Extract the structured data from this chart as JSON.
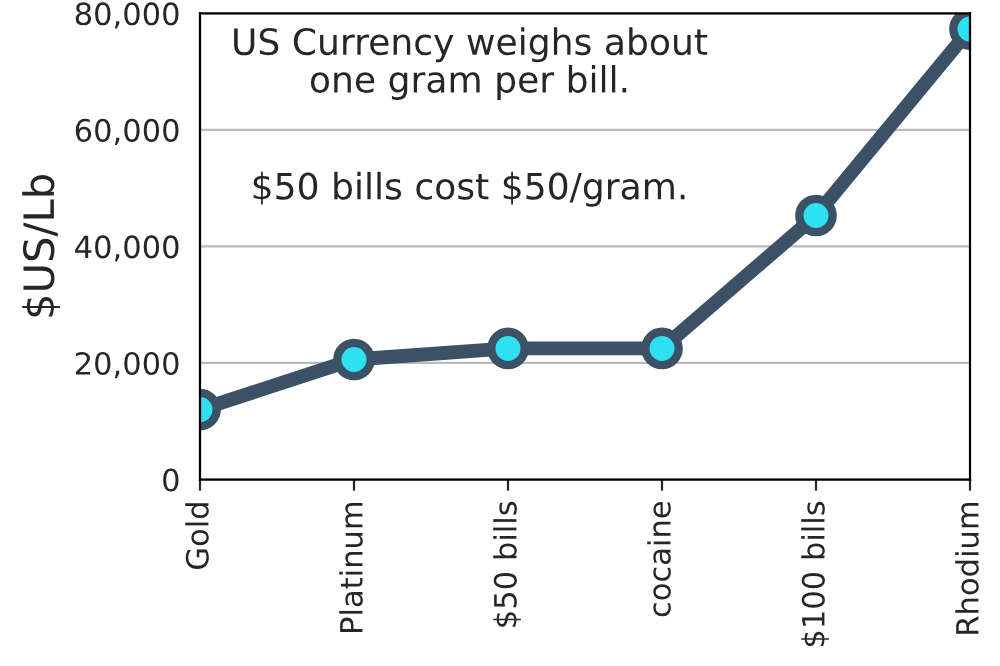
{
  "chart_data": {
    "type": "line",
    "ylabel": "$US/Lb",
    "categories": [
      "Gold",
      "Platinum",
      "$50 bills",
      "cocaine",
      "$100 bills",
      "Rhodium"
    ],
    "series": [
      {
        "color": "#3b5266",
        "values": [
          12000,
          20600,
          22500,
          22500,
          45300,
          77300
        ]
      }
    ],
    "ylim": [
      0,
      80000
    ],
    "yticks": [
      {
        "value": 0,
        "label": "0"
      },
      {
        "value": 20000,
        "label": "20,000"
      },
      {
        "value": 40000,
        "label": "40,000"
      },
      {
        "value": 60000,
        "label": "60,000"
      },
      {
        "value": 80000,
        "label": "80,000"
      }
    ],
    "grid": "y",
    "marker": "circle",
    "line_style": "solid",
    "annotations": [
      "US Currency weighs about\none gram per bill.",
      "$50 bills cost $50/gram."
    ]
  }
}
